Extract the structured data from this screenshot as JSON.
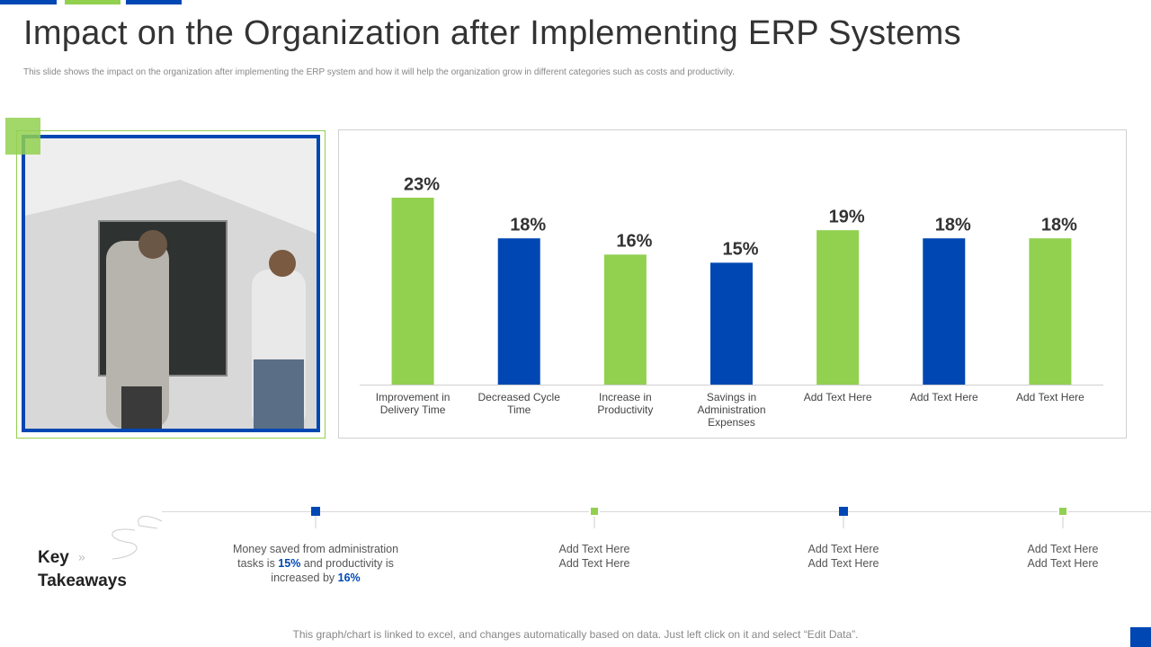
{
  "header": {
    "title": "Impact on the Organization after Implementing ERP Systems",
    "subtitle": "This slide shows the impact on the organization after implementing  the ERP  system and how it will help the organization grow in different categories such as costs and productivity."
  },
  "chart_data": {
    "type": "bar",
    "categories": [
      "Improvement in Delivery Time",
      "Decreased Cycle Time",
      "Increase in Productivity",
      "Savings in Administration Expenses",
      "Add Text Here",
      "Add Text Here",
      "Add Text Here"
    ],
    "values": [
      23,
      18,
      16,
      15,
      19,
      18,
      18
    ],
    "value_labels": [
      "23%",
      "18%",
      "16%",
      "15%",
      "19%",
      "18%",
      "18%"
    ],
    "colors": [
      "#92d050",
      "#0047b3",
      "#92d050",
      "#0047b3",
      "#92d050",
      "#0047b3",
      "#92d050"
    ]
  },
  "takeaways": {
    "heading": "Key Takeaways",
    "items": [
      {
        "segments": [
          "Money saved from administration tasks is ",
          "15%",
          " and productivity is increased by ",
          "16%"
        ]
      },
      {
        "segments": [
          "Add Text Here",
          "Add Text Here"
        ]
      },
      {
        "segments": [
          "Add Text Here",
          "Add Text Here"
        ]
      },
      {
        "segments": [
          "Add Text Here",
          "Add Text Here"
        ]
      }
    ]
  },
  "footer": "This graph/chart is linked to excel, and changes automatically based on data. Just left click on it and select “Edit Data”."
}
